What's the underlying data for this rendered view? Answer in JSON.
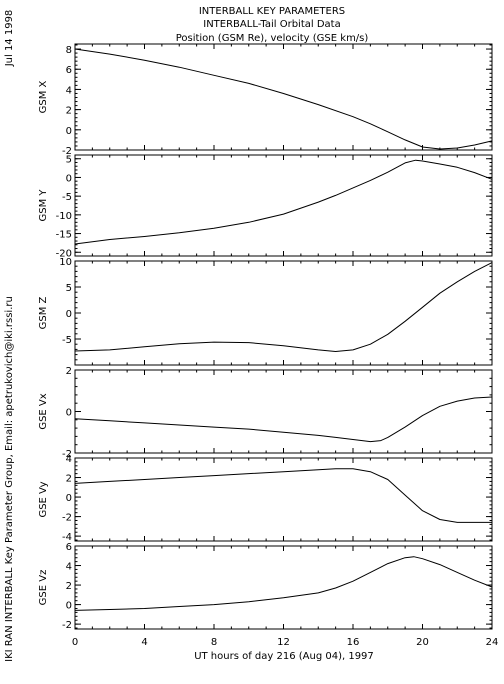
{
  "title_lines": [
    "INTERBALL KEY PARAMETERS",
    "INTERBALL-Tail Orbital Data",
    "Position (GSM Re), velocity (GSE km/s)"
  ],
  "side_date": "Jul 14 1998",
  "side_credit": "IKI RAN INTERBALL Key Parameter Group, Email: apetrukovich@iki.rssi.ru",
  "colors": {
    "line": "#000000",
    "background": "#ffffff"
  },
  "chart_data": [
    {
      "type": "line",
      "ylabel": "GSM X",
      "xlim": [
        0,
        24
      ],
      "ylim": [
        -2,
        8.5
      ],
      "yticks": [
        -2,
        0,
        2,
        4,
        6,
        8
      ],
      "series": [
        {
          "x": [
            0,
            2,
            4,
            6,
            8,
            10,
            12,
            14,
            16,
            17,
            18,
            19,
            20,
            21,
            22,
            23,
            24
          ],
          "values": [
            8.0,
            7.5,
            6.9,
            6.2,
            5.4,
            4.6,
            3.6,
            2.5,
            1.3,
            0.6,
            -0.2,
            -1.0,
            -1.7,
            -1.9,
            -1.8,
            -1.5,
            -1.1
          ]
        }
      ]
    },
    {
      "type": "line",
      "ylabel": "GSM Y",
      "xlim": [
        0,
        24
      ],
      "ylim": [
        -21,
        6
      ],
      "yticks": [
        -20,
        -15,
        -10,
        -5,
        0,
        5
      ],
      "series": [
        {
          "x": [
            0,
            2,
            4,
            6,
            8,
            10,
            12,
            14,
            15,
            16,
            17,
            18,
            19,
            19.6,
            20,
            21,
            22,
            23,
            24
          ],
          "values": [
            -17.8,
            -16.6,
            -15.8,
            -14.8,
            -13.6,
            -12.0,
            -9.8,
            -6.6,
            -4.8,
            -2.8,
            -0.8,
            1.4,
            3.9,
            4.6,
            4.4,
            3.6,
            2.7,
            1.3,
            -0.5
          ]
        }
      ]
    },
    {
      "type": "line",
      "ylabel": "GSM Z",
      "xlim": [
        0,
        24
      ],
      "ylim": [
        -10,
        10
      ],
      "yticks": [
        -5,
        0,
        5,
        10
      ],
      "series": [
        {
          "x": [
            0,
            2,
            4,
            6,
            8,
            10,
            12,
            14,
            15,
            16,
            17,
            18,
            19,
            20,
            21,
            22,
            23,
            24
          ],
          "values": [
            -7.3,
            -7.1,
            -6.5,
            -5.9,
            -5.6,
            -5.7,
            -6.3,
            -7.1,
            -7.4,
            -7.1,
            -6.0,
            -4.1,
            -1.6,
            1.1,
            3.8,
            6.0,
            8.0,
            9.7
          ]
        }
      ]
    },
    {
      "type": "line",
      "ylabel": "GSE Vx",
      "xlim": [
        0,
        24
      ],
      "ylim": [
        -2,
        2
      ],
      "yticks": [
        -2,
        0,
        2
      ],
      "series": [
        {
          "x": [
            0,
            2,
            4,
            6,
            8,
            10,
            12,
            14,
            15,
            16,
            17,
            17.6,
            18,
            19,
            20,
            21,
            22,
            23,
            24
          ],
          "values": [
            -0.35,
            -0.45,
            -0.55,
            -0.65,
            -0.75,
            -0.85,
            -1.0,
            -1.15,
            -1.25,
            -1.35,
            -1.45,
            -1.4,
            -1.25,
            -0.75,
            -0.2,
            0.25,
            0.5,
            0.65,
            0.7
          ]
        }
      ]
    },
    {
      "type": "line",
      "ylabel": "GSE Vy",
      "xlim": [
        0,
        24
      ],
      "ylim": [
        -4.5,
        4
      ],
      "yticks": [
        -4,
        -2,
        0,
        2,
        4
      ],
      "series": [
        {
          "x": [
            0,
            2,
            4,
            6,
            8,
            10,
            12,
            14,
            15,
            16,
            17,
            18,
            19,
            20,
            21,
            22,
            23,
            24
          ],
          "values": [
            1.4,
            1.6,
            1.8,
            2.0,
            2.2,
            2.4,
            2.6,
            2.8,
            2.9,
            2.9,
            2.6,
            1.8,
            0.2,
            -1.4,
            -2.3,
            -2.6,
            -2.6,
            -2.6
          ]
        }
      ]
    },
    {
      "type": "line",
      "ylabel": "GSE Vz",
      "xlim": [
        0,
        24
      ],
      "ylim": [
        -2.5,
        6
      ],
      "yticks": [
        -2,
        0,
        2,
        4,
        6
      ],
      "series": [
        {
          "x": [
            0,
            2,
            4,
            6,
            8,
            10,
            12,
            14,
            15,
            16,
            17,
            18,
            19,
            19.5,
            20,
            21,
            22,
            23,
            24
          ],
          "values": [
            -0.6,
            -0.5,
            -0.4,
            -0.2,
            0.0,
            0.3,
            0.7,
            1.2,
            1.7,
            2.4,
            3.3,
            4.2,
            4.8,
            4.9,
            4.7,
            4.1,
            3.3,
            2.5,
            1.8
          ]
        }
      ]
    }
  ],
  "x_axis": {
    "ticks": [
      0,
      4,
      8,
      12,
      16,
      20,
      24
    ],
    "label": "UT hours of day 216 (Aug 04), 1997"
  }
}
